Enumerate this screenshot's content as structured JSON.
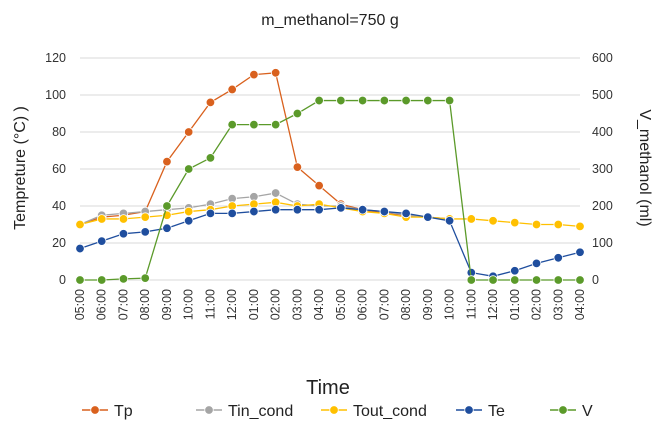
{
  "chart_data": {
    "type": "line",
    "title": "m_methanol=750 g",
    "xlabel": "Time",
    "ylabel": "Tempreture (°C)  )",
    "y2label": "V_methanol (ml)",
    "ylim": [
      0,
      120
    ],
    "y2lim": [
      0,
      600
    ],
    "yticks": [
      0,
      20,
      40,
      60,
      80,
      100,
      120
    ],
    "y2ticks": [
      0,
      100,
      200,
      300,
      400,
      500,
      600
    ],
    "grid": true,
    "legend": "bottom",
    "categories": [
      "05:00",
      "06:00",
      "07:00",
      "08:00",
      "09:00",
      "10:00",
      "11:00",
      "12:00",
      "01:00",
      "02:00",
      "03:00",
      "04:00",
      "05:00",
      "06:00",
      "07:00",
      "08:00",
      "09:00",
      "10:00",
      "11:00",
      "12:00",
      "01:00",
      "02:00",
      "03:00",
      "04:00"
    ],
    "series": [
      {
        "name": "Tp",
        "axis": "left",
        "color": "#d9611e",
        "values": [
          30,
          34,
          35,
          37,
          64,
          80,
          96,
          103,
          111,
          112,
          61,
          51,
          41,
          38,
          36,
          35,
          34,
          33,
          null,
          null,
          null,
          null,
          null,
          null
        ]
      },
      {
        "name": "Tin_cond",
        "axis": "left",
        "color": "#a5a5a5",
        "values": [
          30,
          35,
          36,
          37,
          38,
          39,
          41,
          44,
          45,
          47,
          41,
          40,
          40,
          38,
          37,
          35,
          34,
          33,
          null,
          null,
          null,
          null,
          null,
          null
        ]
      },
      {
        "name": "Tout_cond",
        "axis": "left",
        "color": "#ffc000",
        "values": [
          30,
          33,
          33,
          34,
          35,
          37,
          38,
          40,
          41,
          42,
          40,
          41,
          39,
          37,
          36,
          34,
          34,
          33,
          33,
          32,
          31,
          30,
          30,
          29
        ]
      },
      {
        "name": "Te",
        "axis": "left",
        "color": "#1f4e9e",
        "values": [
          17,
          21,
          25,
          26,
          28,
          32,
          36,
          36,
          37,
          38,
          38,
          38,
          39,
          38,
          37,
          36,
          34,
          32,
          4,
          2,
          5,
          9,
          12,
          15
        ]
      },
      {
        "name": "V",
        "axis": "right",
        "color": "#5b9a2a",
        "values": [
          0,
          0,
          3,
          5,
          200,
          300,
          330,
          420,
          420,
          420,
          450,
          485,
          485,
          485,
          485,
          485,
          485,
          485,
          0,
          0,
          0,
          0,
          0,
          0
        ]
      }
    ]
  }
}
